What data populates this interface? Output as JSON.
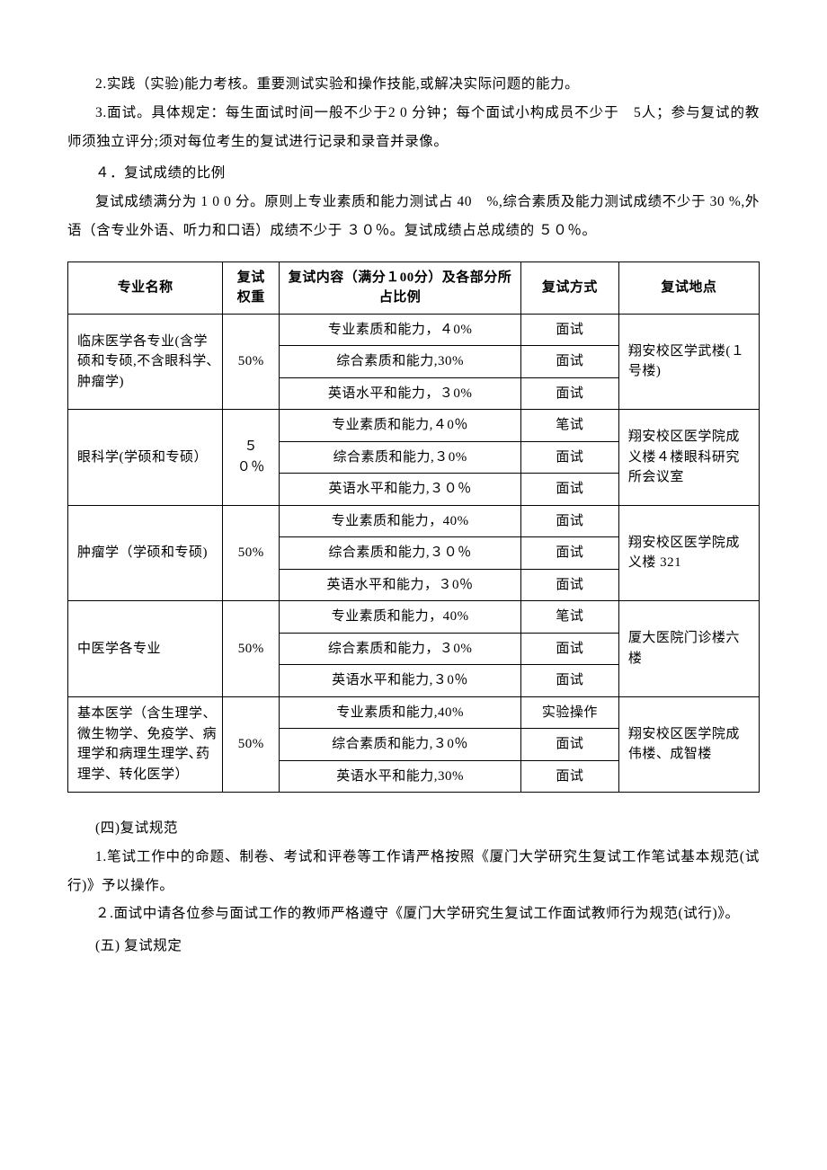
{
  "paragraphs": {
    "p1": "2.实践（实验)能力考核。重要测试实验和操作技能,或解决实际问题的能力。",
    "p2": "3.面试。具体规定：每生面试时间一般不少于2 0 分钟；每个面试小构成员不少于　5人；参与复试的教师须独立评分;须对每位考生的复试进行记录和录音并录像。",
    "p3": "４．复试成绩的比例",
    "p4": "复试成绩满分为 1 0 0 分。原则上专业素质和能力测试占 40　%,综合素质及能力测试成绩不少于 30 %,外语（含专业外语、听力和口语）成绩不少于 ３０％。复试成绩占总成绩的 ５０％。",
    "p5": "(四)复试规范",
    "p6": "1.笔试工作中的命题、制卷、考试和评卷等工作请严格按照《厦门大学研究生复试工作笔试基本规范(试行)》予以操作。",
    "p7": "２.面试中请各位参与面试工作的教师严格遵守《厦门大学研究生复试工作面试教师行为规范(试行)》。",
    "p8": "(五) 复试规定"
  },
  "table": {
    "headers": {
      "major": "专业名称",
      "weight": "复试权重",
      "content": "复试内容（满分１00分）及各部分所占比例",
      "method": "复试方式",
      "location": "复试地点"
    },
    "groups": [
      {
        "major": "临床医学各专业(含学硕和专硕,不含眼科学､肿瘤学)",
        "weight": "50%",
        "location": "翔安校区学武楼(１号楼)",
        "rows": [
          {
            "content": "专业素质和能力，４0%",
            "method": "面试"
          },
          {
            "content": "综合素质和能力,30%",
            "method": "面试"
          },
          {
            "content": "英语水平和能力，３0%",
            "method": "面试"
          }
        ]
      },
      {
        "major": "眼科学(学硕和专硕）",
        "weight": "５０％",
        "location": "翔安校区医学院成义楼４楼眼科研究所会议室",
        "rows": [
          {
            "content": "专业素质和能力,４0％",
            "method": "笔试"
          },
          {
            "content": "综合素质和能力,３0%",
            "method": "面试"
          },
          {
            "content": "英语水平和能力,３０％",
            "method": "面试"
          }
        ]
      },
      {
        "major": "肿瘤学（学硕和专硕)",
        "weight": "50%",
        "location": "翔安校区医学院成义楼 321",
        "rows": [
          {
            "content": "专业素质和能力，40%",
            "method": "面试"
          },
          {
            "content": "综合素质和能力,３０％",
            "method": "面试"
          },
          {
            "content": "英语水平和能力，３0％",
            "method": "面试"
          }
        ]
      },
      {
        "major": "中医学各专业",
        "weight": "50%",
        "location": "厦大医院门诊楼六楼",
        "rows": [
          {
            "content": "专业素质和能力，40%",
            "method": "笔试"
          },
          {
            "content": "综合素质和能力，３0%",
            "method": "面试"
          },
          {
            "content": "英语水平和能力,３0％",
            "method": "面试"
          }
        ]
      },
      {
        "major": "基本医学（含生理学、微生物学、免疫学、病理学和病理生理学､药理学、转化医学）",
        "weight": "50%",
        "location": "翔安校区医学院成伟楼、成智楼",
        "rows": [
          {
            "content": "专业素质和能力,40%",
            "method": "实验操作"
          },
          {
            "content": "综合素质和能力,３0％",
            "method": "面试"
          },
          {
            "content": "英语水平和能力,30%",
            "method": "面试"
          }
        ]
      }
    ]
  }
}
